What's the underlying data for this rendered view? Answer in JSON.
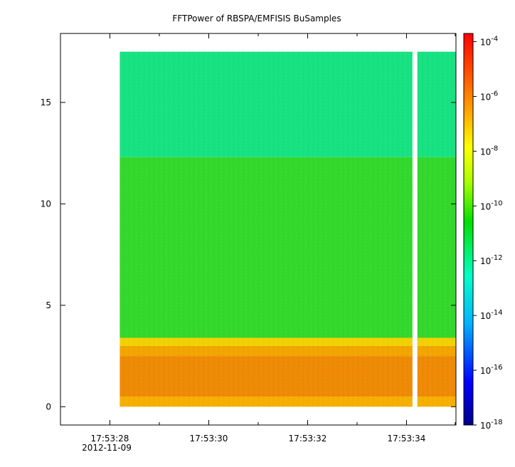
{
  "chart_data": {
    "type": "heatmap",
    "title": "FFTPower of RBSPA/EMFISIS  BuSamples",
    "date_label": "2012-11-09",
    "xlabel": "",
    "ylabel": "",
    "x_range": [
      "17:53:27.0",
      "17:53:35.0"
    ],
    "x_tick_labels": [
      "17:53:28",
      "17:53:30",
      "17:53:32",
      "17:53:34"
    ],
    "x_major_ticks": [
      "17:53:28",
      "17:53:30",
      "17:53:32",
      "17:53:34"
    ],
    "x_minor_ticks": [
      "17:53:29",
      "17:53:31",
      "17:53:33",
      "17:53:35"
    ],
    "ylim": [
      -0.9,
      18.4
    ],
    "y_ticks": [
      0,
      5,
      10,
      15
    ],
    "y_tick_labels": [
      "0",
      "5",
      "10",
      "15"
    ],
    "data_x_range": [
      "17:53:28.2",
      "17:53:35.0"
    ],
    "data_y_range": [
      0,
      17.5
    ],
    "gap": {
      "x": [
        "17:53:34.12",
        "17:53:34.22"
      ]
    },
    "bands": [
      {
        "y": [
          0,
          0.5
        ],
        "log10_power": -7.4,
        "color": "#f5b000"
      },
      {
        "y": [
          0.5,
          2.5
        ],
        "log10_power": -6.4,
        "color": "#ef8a05"
      },
      {
        "y": [
          2.5,
          3.0
        ],
        "log10_power": -7.1,
        "color": "#f3a500"
      },
      {
        "y": [
          3.0,
          3.4
        ],
        "log10_power": -7.8,
        "color": "#f1d200"
      },
      {
        "y": [
          3.4,
          12.3
        ],
        "log10_power": -10.2,
        "color": "#33d82c"
      },
      {
        "y": [
          12.3,
          17.5
        ],
        "log10_power": -11.8,
        "color": "#17e282"
      }
    ],
    "grid": false,
    "colorbar": {
      "scale": "log",
      "range": [
        -18,
        -3.7
      ],
      "tick_labels": [
        "-4",
        "-6",
        "-8",
        "-10",
        "-12",
        "-14",
        "-16",
        "-18"
      ],
      "tick_values": [
        -4,
        -6,
        -8,
        -10,
        -12,
        -14,
        -16,
        -18
      ],
      "tick_base": "10",
      "colors": [
        "#00008c",
        "#0000ff",
        "#00b4ff",
        "#00ffc8",
        "#00e000",
        "#aaff00",
        "#ffff00",
        "#ffa500",
        "#ff5000",
        "#ff0000"
      ],
      "placement": "right"
    }
  }
}
